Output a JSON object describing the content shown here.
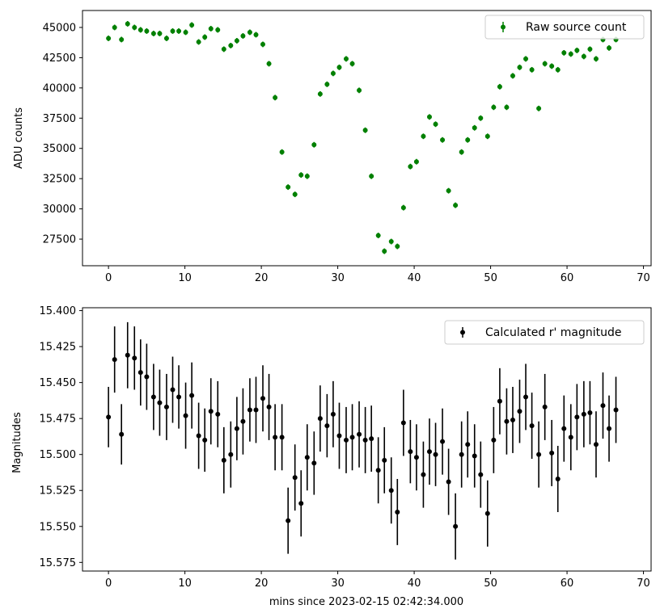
{
  "chart_data": [
    {
      "type": "scatter",
      "title": "",
      "xlabel": "",
      "ylabel": "ADU counts",
      "xlim": [
        -3.4,
        71
      ],
      "ylim": [
        25300,
        46400
      ],
      "xticks": [
        0,
        10,
        20,
        30,
        40,
        50,
        60,
        70
      ],
      "yticks": [
        27500,
        30000,
        32500,
        35000,
        37500,
        40000,
        42500,
        45000
      ],
      "xtick_labels": [
        "0",
        "10",
        "20",
        "30",
        "40",
        "50",
        "60",
        "70"
      ],
      "ytick_labels": [
        "27500",
        "30000",
        "32500",
        "35000",
        "37500",
        "40000",
        "42500",
        "45000"
      ],
      "grid": false,
      "legend_position": "upper right",
      "series": [
        {
          "name": "Raw source count",
          "color": "#008000",
          "marker": "circle",
          "errorbars": true,
          "points": [
            [
              0.0,
              44100
            ],
            [
              0.8,
              45000
            ],
            [
              1.7,
              44000
            ],
            [
              2.5,
              45300
            ],
            [
              3.4,
              45000
            ],
            [
              4.2,
              44800
            ],
            [
              5.0,
              44700
            ],
            [
              5.9,
              44500
            ],
            [
              6.7,
              44500
            ],
            [
              7.6,
              44100
            ],
            [
              8.4,
              44700
            ],
            [
              9.2,
              44700
            ],
            [
              10.1,
              44600
            ],
            [
              10.9,
              45200
            ],
            [
              11.8,
              43800
            ],
            [
              12.6,
              44200
            ],
            [
              13.4,
              44900
            ],
            [
              14.3,
              44800
            ],
            [
              15.1,
              43200
            ],
            [
              16.0,
              43500
            ],
            [
              16.8,
              43900
            ],
            [
              17.6,
              44300
            ],
            [
              18.5,
              44600
            ],
            [
              19.3,
              44400
            ],
            [
              20.2,
              43600
            ],
            [
              21.0,
              42000
            ],
            [
              21.8,
              39200
            ],
            [
              22.7,
              34700
            ],
            [
              23.5,
              31800
            ],
            [
              24.4,
              31200
            ],
            [
              25.2,
              32800
            ],
            [
              26.0,
              32700
            ],
            [
              26.9,
              35300
            ],
            [
              27.7,
              39500
            ],
            [
              28.6,
              40300
            ],
            [
              29.4,
              41200
            ],
            [
              30.2,
              41700
            ],
            [
              31.1,
              42400
            ],
            [
              31.9,
              42000
            ],
            [
              32.8,
              39800
            ],
            [
              33.6,
              36500
            ],
            [
              34.4,
              32700
            ],
            [
              35.3,
              27800
            ],
            [
              36.1,
              26500
            ],
            [
              37.0,
              27300
            ],
            [
              37.8,
              26900
            ],
            [
              38.6,
              30100
            ],
            [
              39.5,
              33500
            ],
            [
              40.3,
              33900
            ],
            [
              41.2,
              36000
            ],
            [
              42.0,
              37600
            ],
            [
              42.8,
              37000
            ],
            [
              43.7,
              35700
            ],
            [
              44.5,
              31500
            ],
            [
              45.4,
              30300
            ],
            [
              46.2,
              34700
            ],
            [
              47.0,
              35700
            ],
            [
              47.9,
              36700
            ],
            [
              48.7,
              37500
            ],
            [
              49.6,
              36000
            ],
            [
              50.4,
              38400
            ],
            [
              51.2,
              40100
            ],
            [
              52.1,
              38400
            ],
            [
              52.9,
              41000
            ],
            [
              53.8,
              41700
            ],
            [
              54.6,
              42400
            ],
            [
              55.4,
              41500
            ],
            [
              56.3,
              38300
            ],
            [
              57.1,
              42000
            ],
            [
              58.0,
              41800
            ],
            [
              58.8,
              41500
            ],
            [
              59.6,
              42900
            ],
            [
              60.5,
              42800
            ],
            [
              61.3,
              43100
            ],
            [
              62.2,
              42600
            ],
            [
              63.0,
              43200
            ],
            [
              63.8,
              42400
            ],
            [
              64.7,
              44000
            ],
            [
              65.5,
              43300
            ],
            [
              66.4,
              44000
            ]
          ],
          "yerr": 230
        }
      ]
    },
    {
      "type": "scatter",
      "title": "",
      "xlabel": "mins since 2023-02-15 02:42:34.000",
      "ylabel": "Magnitudes",
      "xlim": [
        -3.4,
        71
      ],
      "ylim": [
        15.581,
        15.398
      ],
      "y_inverted": true,
      "xticks": [
        0,
        10,
        20,
        30,
        40,
        50,
        60,
        70
      ],
      "yticks": [
        15.4,
        15.425,
        15.45,
        15.475,
        15.5,
        15.525,
        15.55,
        15.575
      ],
      "xtick_labels": [
        "0",
        "10",
        "20",
        "30",
        "40",
        "50",
        "60",
        "70"
      ],
      "ytick_labels": [
        "15.400",
        "15.425",
        "15.450",
        "15.475",
        "15.500",
        "15.525",
        "15.550",
        "15.575"
      ],
      "grid": false,
      "legend_position": "upper right",
      "series": [
        {
          "name": "Calculated r' magnitude",
          "color": "#000000",
          "marker": "circle",
          "errorbars": true,
          "points": [
            [
              0.0,
              15.474,
              0.021
            ],
            [
              0.8,
              15.434,
              0.023
            ],
            [
              1.7,
              15.486,
              0.021
            ],
            [
              2.5,
              15.431,
              0.023
            ],
            [
              3.4,
              15.433,
              0.022
            ],
            [
              4.2,
              15.443,
              0.023
            ],
            [
              5.0,
              15.446,
              0.023
            ],
            [
              5.9,
              15.46,
              0.023
            ],
            [
              6.7,
              15.464,
              0.023
            ],
            [
              7.6,
              15.467,
              0.023
            ],
            [
              8.4,
              15.455,
              0.023
            ],
            [
              9.2,
              15.46,
              0.022
            ],
            [
              10.1,
              15.473,
              0.023
            ],
            [
              10.9,
              15.459,
              0.023
            ],
            [
              11.8,
              15.487,
              0.023
            ],
            [
              12.6,
              15.49,
              0.022
            ],
            [
              13.4,
              15.47,
              0.023
            ],
            [
              14.3,
              15.472,
              0.023
            ],
            [
              15.1,
              15.504,
              0.023
            ],
            [
              16.0,
              15.5,
              0.023
            ],
            [
              16.8,
              15.482,
              0.022
            ],
            [
              17.6,
              15.477,
              0.023
            ],
            [
              18.5,
              15.469,
              0.022
            ],
            [
              19.3,
              15.469,
              0.023
            ],
            [
              20.2,
              15.461,
              0.023
            ],
            [
              21.0,
              15.467,
              0.023
            ],
            [
              21.8,
              15.488,
              0.023
            ],
            [
              22.7,
              15.488,
              0.023
            ],
            [
              23.5,
              15.546,
              0.023
            ],
            [
              24.4,
              15.516,
              0.023
            ],
            [
              25.2,
              15.534,
              0.023
            ],
            [
              26.0,
              15.502,
              0.023
            ],
            [
              26.9,
              15.506,
              0.022
            ],
            [
              27.7,
              15.475,
              0.023
            ],
            [
              28.6,
              15.48,
              0.022
            ],
            [
              29.4,
              15.472,
              0.023
            ],
            [
              30.2,
              15.487,
              0.023
            ],
            [
              31.1,
              15.49,
              0.023
            ],
            [
              31.9,
              15.488,
              0.023
            ],
            [
              32.8,
              15.486,
              0.023
            ],
            [
              33.6,
              15.49,
              0.023
            ],
            [
              34.4,
              15.489,
              0.023
            ],
            [
              35.3,
              15.511,
              0.023
            ],
            [
              36.1,
              15.504,
              0.023
            ],
            [
              37.0,
              15.525,
              0.023
            ],
            [
              37.8,
              15.54,
              0.023
            ],
            [
              38.6,
              15.478,
              0.023
            ],
            [
              39.5,
              15.498,
              0.022
            ],
            [
              40.3,
              15.502,
              0.023
            ],
            [
              41.2,
              15.514,
              0.023
            ],
            [
              42.0,
              15.498,
              0.023
            ],
            [
              42.8,
              15.5,
              0.022
            ],
            [
              43.7,
              15.491,
              0.023
            ],
            [
              44.5,
              15.519,
              0.023
            ],
            [
              45.4,
              15.55,
              0.023
            ],
            [
              46.2,
              15.5,
              0.023
            ],
            [
              47.0,
              15.493,
              0.023
            ],
            [
              47.9,
              15.501,
              0.022
            ],
            [
              48.7,
              15.514,
              0.023
            ],
            [
              49.6,
              15.541,
              0.023
            ],
            [
              50.4,
              15.49,
              0.023
            ],
            [
              51.2,
              15.463,
              0.023
            ],
            [
              52.1,
              15.477,
              0.023
            ],
            [
              52.9,
              15.476,
              0.023
            ],
            [
              53.8,
              15.47,
              0.022
            ],
            [
              54.6,
              15.46,
              0.023
            ],
            [
              55.4,
              15.48,
              0.023
            ],
            [
              56.3,
              15.5,
              0.023
            ],
            [
              57.1,
              15.467,
              0.023
            ],
            [
              58.0,
              15.499,
              0.023
            ],
            [
              58.8,
              15.517,
              0.023
            ],
            [
              59.6,
              15.482,
              0.023
            ],
            [
              60.5,
              15.488,
              0.023
            ],
            [
              61.3,
              15.474,
              0.023
            ],
            [
              62.2,
              15.472,
              0.023
            ],
            [
              63.0,
              15.471,
              0.022
            ],
            [
              63.8,
              15.493,
              0.023
            ],
            [
              64.7,
              15.466,
              0.023
            ],
            [
              65.5,
              15.482,
              0.023
            ],
            [
              66.4,
              15.469,
              0.023
            ]
          ]
        }
      ]
    }
  ]
}
